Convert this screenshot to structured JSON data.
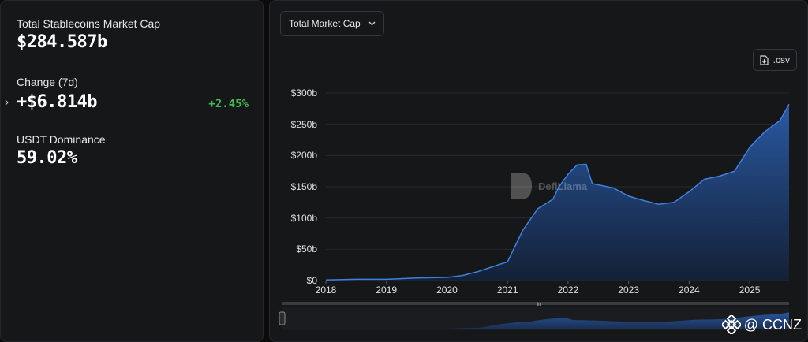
{
  "stats": {
    "market_cap_label": "Total Stablecoins Market Cap",
    "market_cap_value": "$284.587b",
    "change_label": "Change (7d)",
    "change_value": "+$6.814b",
    "change_pct": "+2.45%",
    "dominance_label": "USDT Dominance",
    "dominance_value": "59.02%"
  },
  "toolbar": {
    "dropdown_label": "Total Market Cap",
    "csv_label": ".csv"
  },
  "watermark": "DefiLlama",
  "brand_label": "@ CCNZ",
  "slider_handle_label": "lıı",
  "colors": {
    "accent": "#3f7fe0",
    "positive": "#3fb950",
    "fill_top": "#2a5caa"
  },
  "chart_data": {
    "type": "area",
    "x": [
      2018.0,
      2018.5,
      2019.0,
      2019.5,
      2020.0,
      2020.25,
      2020.5,
      2020.75,
      2021.0,
      2021.25,
      2021.5,
      2021.75,
      2021.85,
      2022.0,
      2022.15,
      2022.3,
      2022.35,
      2022.4,
      2022.55,
      2022.75,
      2023.0,
      2023.25,
      2023.5,
      2023.75,
      2024.0,
      2024.25,
      2024.5,
      2024.75,
      2025.0,
      2025.25,
      2025.5,
      2025.65
    ],
    "values": [
      1,
      2,
      2,
      4,
      5,
      8,
      14,
      22,
      30,
      80,
      115,
      130,
      150,
      170,
      185,
      186,
      170,
      155,
      152,
      148,
      135,
      128,
      122,
      125,
      142,
      162,
      167,
      175,
      213,
      238,
      256,
      282
    ],
    "ylim": [
      0,
      300
    ],
    "xlim": [
      2018,
      2025.65
    ],
    "y_ticks": [
      "$0",
      "$50b",
      "$100b",
      "$150b",
      "$200b",
      "$250b",
      "$300b"
    ],
    "x_ticks": [
      "2018",
      "2019",
      "2020",
      "2021",
      "2022",
      "2023",
      "2024",
      "2025"
    ],
    "grid": true,
    "title": "",
    "xlabel": "",
    "ylabel": ""
  }
}
